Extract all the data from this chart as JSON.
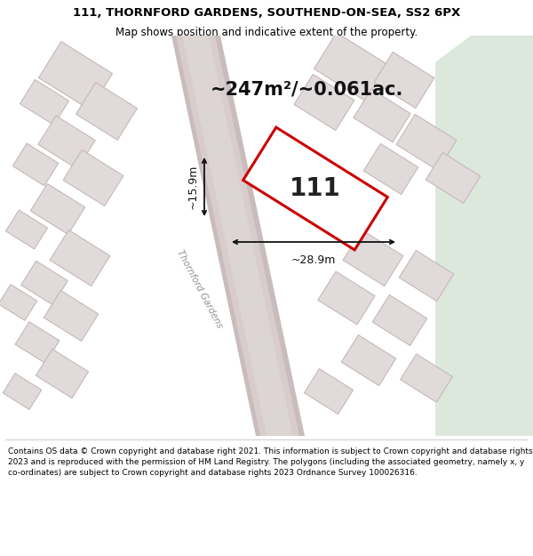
{
  "title_line1": "111, THORNFORD GARDENS, SOUTHEND-ON-SEA, SS2 6PX",
  "title_line2": "Map shows position and indicative extent of the property.",
  "footer_text": "Contains OS data © Crown copyright and database right 2021. This information is subject to Crown copyright and database rights 2023 and is reproduced with the permission of HM Land Registry. The polygons (including the associated geometry, namely x, y co-ordinates) are subject to Crown copyright and database rights 2023 Ordnance Survey 100026316.",
  "area_text": "~247m²/~0.061ac.",
  "width_text": "~28.9m",
  "height_text": "~15.9m",
  "property_label": "111",
  "map_bg": "#ede8e8",
  "building_fill": "#e0dada",
  "building_stroke": "#c8b8b8",
  "property_fill": "#ffffff",
  "property_stroke": "#cc0000",
  "green_color": "#dde8dc",
  "road_fill": "#d8cccc",
  "road_edge": "#c8bcbc",
  "street_name": "Thornford Gardens",
  "figsize": [
    6.0,
    6.25
  ],
  "dpi": 100
}
